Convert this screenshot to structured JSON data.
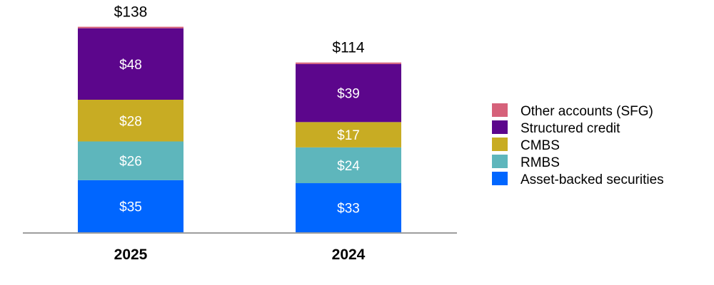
{
  "chart_data": {
    "type": "bar",
    "stacked": true,
    "categories": [
      "2025",
      "2024"
    ],
    "totals": [
      "$138",
      "$114"
    ],
    "totals_values": [
      138,
      114
    ],
    "value_prefix": "$",
    "series": [
      {
        "name": "Asset-backed securities",
        "color": "#0066ff",
        "values": [
          35,
          33
        ],
        "labels": [
          "$35",
          "$33"
        ]
      },
      {
        "name": "RMBS",
        "color": "#5eb6bc",
        "values": [
          26,
          24
        ],
        "labels": [
          "$26",
          "$24"
        ]
      },
      {
        "name": "CMBS",
        "color": "#c8ac23",
        "values": [
          28,
          17
        ],
        "labels": [
          "$28",
          "$17"
        ]
      },
      {
        "name": "Structured credit",
        "color": "#5c068c",
        "values": [
          48,
          39
        ],
        "labels": [
          "$48",
          "$39"
        ]
      },
      {
        "name": "Other accounts (SFG)",
        "color": "#d6617a",
        "values": [
          1,
          1
        ],
        "labels": [
          "",
          ""
        ]
      }
    ],
    "legend_order": [
      "Other accounts (SFG)",
      "Structured credit",
      "CMBS",
      "RMBS",
      "Asset-backed securities"
    ],
    "legend_position": "right",
    "grid": false,
    "ylim": [
      0,
      140
    ]
  }
}
